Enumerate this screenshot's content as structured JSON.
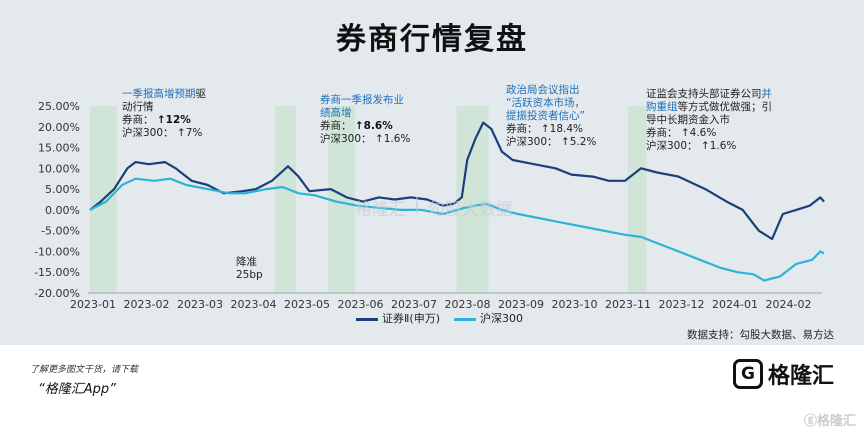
{
  "chart_data": {
    "type": "line",
    "title": "券商行情复盘",
    "ylim": [
      -20,
      25
    ],
    "yticks": [
      "25.00%",
      "20.00%",
      "15.00%",
      "10.00%",
      "5.00%",
      "0.00%",
      "-5.00%",
      "-10.00%",
      "-15.00%",
      "-20.00%"
    ],
    "xticks": [
      "2023-01",
      "2023-02",
      "2023-03",
      "2023-04",
      "2023-05",
      "2023-06",
      "2023-07",
      "2023-08",
      "2023-09",
      "2023-10",
      "2023-11",
      "2023-12",
      "2024-01",
      "2024-02"
    ],
    "series": [
      {
        "name": "证券Ⅱ(申万)",
        "color": "#1b3f7a",
        "points": [
          [
            0.0,
            0
          ],
          [
            0.2,
            2
          ],
          [
            0.45,
            5
          ],
          [
            0.7,
            10
          ],
          [
            0.85,
            11.5
          ],
          [
            1.1,
            11
          ],
          [
            1.4,
            11.5
          ],
          [
            1.6,
            10
          ],
          [
            1.9,
            7
          ],
          [
            2.2,
            6
          ],
          [
            2.5,
            4
          ],
          [
            2.85,
            4.5
          ],
          [
            3.1,
            5
          ],
          [
            3.4,
            7
          ],
          [
            3.7,
            10.5
          ],
          [
            3.9,
            8
          ],
          [
            4.1,
            4.5
          ],
          [
            4.5,
            5
          ],
          [
            4.8,
            3
          ],
          [
            5.1,
            2
          ],
          [
            5.4,
            3
          ],
          [
            5.7,
            2.5
          ],
          [
            6.0,
            3
          ],
          [
            6.3,
            2.5
          ],
          [
            6.6,
            1
          ],
          [
            6.8,
            1.5
          ],
          [
            6.95,
            3
          ],
          [
            7.05,
            12
          ],
          [
            7.2,
            17
          ],
          [
            7.35,
            21
          ],
          [
            7.5,
            19.5
          ],
          [
            7.7,
            14
          ],
          [
            7.9,
            12
          ],
          [
            8.3,
            11
          ],
          [
            8.7,
            10
          ],
          [
            9.0,
            8.5
          ],
          [
            9.4,
            8
          ],
          [
            9.7,
            7
          ],
          [
            10.0,
            7
          ],
          [
            10.3,
            10
          ],
          [
            10.6,
            9
          ],
          [
            11.0,
            8
          ],
          [
            11.5,
            5
          ],
          [
            11.9,
            2
          ],
          [
            12.2,
            0
          ],
          [
            12.5,
            -5
          ],
          [
            12.75,
            -7
          ],
          [
            12.95,
            -1
          ],
          [
            13.2,
            0
          ],
          [
            13.45,
            1
          ],
          [
            13.65,
            3
          ],
          [
            13.72,
            2
          ]
        ]
      },
      {
        "name": "沪深300",
        "color": "#2db3d6",
        "points": [
          [
            0.0,
            0
          ],
          [
            0.3,
            2
          ],
          [
            0.6,
            6
          ],
          [
            0.85,
            7.5
          ],
          [
            1.2,
            7
          ],
          [
            1.5,
            7.5
          ],
          [
            1.8,
            6
          ],
          [
            2.2,
            5
          ],
          [
            2.6,
            4
          ],
          [
            2.9,
            4
          ],
          [
            3.3,
            5
          ],
          [
            3.6,
            5.5
          ],
          [
            3.9,
            4
          ],
          [
            4.2,
            3.5
          ],
          [
            4.6,
            2
          ],
          [
            5.0,
            1
          ],
          [
            5.4,
            0.5
          ],
          [
            5.8,
            0
          ],
          [
            6.2,
            0
          ],
          [
            6.6,
            -1
          ],
          [
            7.0,
            0.5
          ],
          [
            7.2,
            1
          ],
          [
            7.4,
            1.5
          ],
          [
            7.7,
            0
          ],
          [
            8.0,
            -1
          ],
          [
            8.4,
            -2
          ],
          [
            8.8,
            -3
          ],
          [
            9.2,
            -4
          ],
          [
            9.6,
            -5
          ],
          [
            10.0,
            -6
          ],
          [
            10.3,
            -6.5
          ],
          [
            10.6,
            -8
          ],
          [
            11.0,
            -10
          ],
          [
            11.4,
            -12
          ],
          [
            11.8,
            -14
          ],
          [
            12.1,
            -15
          ],
          [
            12.4,
            -15.5
          ],
          [
            12.6,
            -17
          ],
          [
            12.9,
            -16
          ],
          [
            13.2,
            -13
          ],
          [
            13.5,
            -12
          ],
          [
            13.65,
            -10
          ],
          [
            13.72,
            -10.5
          ]
        ]
      }
    ],
    "shaded_ranges": [
      [
        0.0,
        0.5
      ],
      [
        3.45,
        3.85
      ],
      [
        4.45,
        4.95
      ],
      [
        6.85,
        7.45
      ],
      [
        10.05,
        10.4
      ]
    ],
    "legend": [
      "证券Ⅱ(申万)",
      "沪深300"
    ],
    "legend_position": "bottom-center"
  },
  "annotations": {
    "a1": {
      "line1": "一季报高增预期",
      "line1_tail": "驱",
      "line2": "动行情",
      "line3_label": "券商：",
      "line3_value": "↑12%",
      "line4_label": "沪深300：",
      "line4_value": "↑7%"
    },
    "a2": {
      "line1": "券商一季报发布业",
      "line2": "绩高增",
      "line3_label": "券商：",
      "line3_value": "↑8.6%",
      "line4_label": "沪深300：",
      "line4_value": "↑1.6%"
    },
    "a3": {
      "line1": "降准",
      "line2": "25bp"
    },
    "a4": {
      "line1": "政治局会议指出",
      "line2": "“活跃资本市场，",
      "line3": "提振投资者信心”",
      "line4_label": "券商：",
      "line4_value": "↑18.4%",
      "line5_label": "沪深300：",
      "line5_value": "↑5.2%"
    },
    "a5": {
      "line1_a": "证监会支持头部证券公司",
      "line1_b": "并",
      "line2_a": "购重组",
      "line2_b": "等方式做优做强；引",
      "line3": "导中长期资金入市",
      "line4_label": "券商：",
      "line4_value": "↑4.6%",
      "line5_label": "沪深300：",
      "line5_value": "↑1.6%"
    }
  },
  "source": "数据支持：勾股大数据、易方达",
  "footer": {
    "note": "了解更多图文干货，请下载",
    "app": "“格隆汇App”"
  },
  "logo": {
    "mark": "G",
    "text": "格隆汇"
  },
  "watermark": {
    "left": "格隆汇",
    "right": "勾股大数据",
    "corner": "ⓖ格隆汇"
  },
  "colors": {
    "panel": "#e4e9ee",
    "shade": "#c9e3cf",
    "highlight": "#1f6fb8"
  }
}
